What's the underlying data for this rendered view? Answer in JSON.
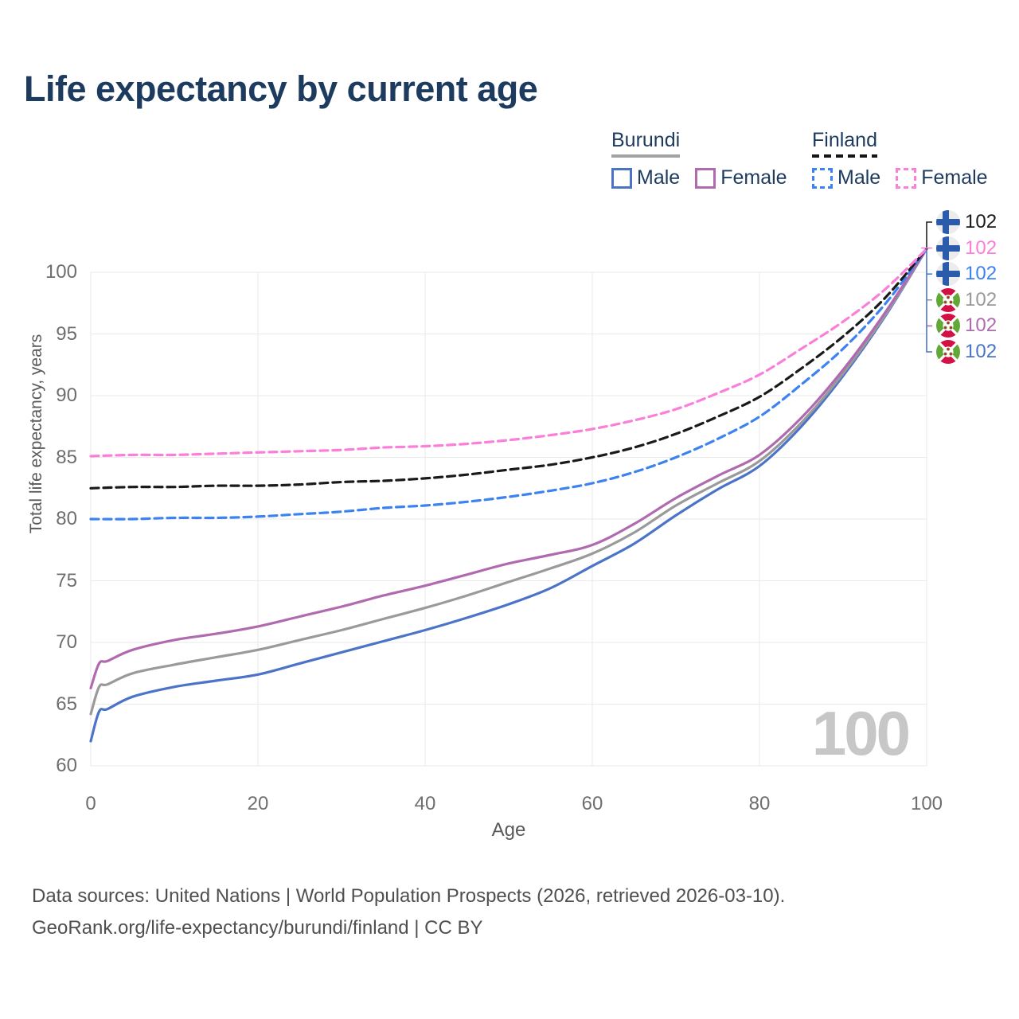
{
  "title": "Life expectancy by current age",
  "legend": {
    "groups": [
      {
        "label": "Burundi",
        "swatch_style": "solid",
        "swatch_color": "#a3a3a3",
        "items": [
          {
            "label": "Male",
            "color": "#4b74c8",
            "dashed": false
          },
          {
            "label": "Female",
            "color": "#b06ab0",
            "dashed": false
          }
        ]
      },
      {
        "label": "Finland",
        "swatch_style": "dashed",
        "swatch_color": "#161616",
        "items": [
          {
            "label": "Male",
            "color": "#3d82f2",
            "dashed": true
          },
          {
            "label": "Female",
            "color": "#fb7fd9",
            "dashed": true
          }
        ]
      }
    ]
  },
  "chart_data": {
    "type": "line",
    "title": "Life expectancy by current age",
    "xlabel": "Age",
    "ylabel": "Total life expectancy, years",
    "xlim": [
      0,
      100
    ],
    "ylim": [
      60,
      102.5
    ],
    "xticks": [
      0,
      20,
      40,
      60,
      80,
      100
    ],
    "yticks": [
      60,
      65,
      70,
      75,
      80,
      85,
      90,
      95,
      100
    ],
    "grid": true,
    "legend_position": "top-right",
    "watermark": "100",
    "series": [
      {
        "id": "finland-total",
        "name": "Finland (both sexes)",
        "country": "Finland",
        "sex": "total",
        "color": "#1a1a1a",
        "dashed": true,
        "flag": "finland",
        "end_label": "102",
        "points": [
          [
            0,
            82.5
          ],
          [
            5,
            82.6
          ],
          [
            10,
            82.6
          ],
          [
            15,
            82.7
          ],
          [
            20,
            82.7
          ],
          [
            25,
            82.8
          ],
          [
            30,
            83.0
          ],
          [
            35,
            83.1
          ],
          [
            40,
            83.3
          ],
          [
            45,
            83.6
          ],
          [
            50,
            84.0
          ],
          [
            55,
            84.4
          ],
          [
            60,
            85.0
          ],
          [
            65,
            85.8
          ],
          [
            70,
            86.9
          ],
          [
            75,
            88.3
          ],
          [
            80,
            89.9
          ],
          [
            85,
            92.2
          ],
          [
            90,
            94.8
          ],
          [
            95,
            97.9
          ],
          [
            100,
            101.9
          ]
        ]
      },
      {
        "id": "finland-female",
        "name": "Finland Female",
        "country": "Finland",
        "sex": "female",
        "color": "#fb7fd9",
        "dashed": true,
        "flag": "finland",
        "end_label": "102",
        "points": [
          [
            0,
            85.1
          ],
          [
            5,
            85.2
          ],
          [
            10,
            85.2
          ],
          [
            15,
            85.3
          ],
          [
            20,
            85.4
          ],
          [
            25,
            85.5
          ],
          [
            30,
            85.6
          ],
          [
            35,
            85.8
          ],
          [
            40,
            85.9
          ],
          [
            45,
            86.1
          ],
          [
            50,
            86.4
          ],
          [
            55,
            86.8
          ],
          [
            60,
            87.3
          ],
          [
            65,
            88.0
          ],
          [
            70,
            88.9
          ],
          [
            75,
            90.2
          ],
          [
            80,
            91.7
          ],
          [
            85,
            93.8
          ],
          [
            90,
            96.0
          ],
          [
            95,
            98.6
          ],
          [
            100,
            101.9
          ]
        ]
      },
      {
        "id": "finland-male",
        "name": "Finland Male",
        "country": "Finland",
        "sex": "male",
        "color": "#3d82f2",
        "dashed": true,
        "flag": "finland",
        "end_label": "102",
        "points": [
          [
            0,
            80.0
          ],
          [
            5,
            80.0
          ],
          [
            10,
            80.1
          ],
          [
            15,
            80.1
          ],
          [
            20,
            80.2
          ],
          [
            25,
            80.4
          ],
          [
            30,
            80.6
          ],
          [
            35,
            80.9
          ],
          [
            40,
            81.1
          ],
          [
            45,
            81.4
          ],
          [
            50,
            81.8
          ],
          [
            55,
            82.3
          ],
          [
            60,
            82.9
          ],
          [
            65,
            83.8
          ],
          [
            70,
            85.0
          ],
          [
            75,
            86.5
          ],
          [
            80,
            88.3
          ],
          [
            85,
            90.9
          ],
          [
            90,
            93.8
          ],
          [
            95,
            97.4
          ],
          [
            100,
            101.9
          ]
        ]
      },
      {
        "id": "burundi-total",
        "name": "Burundi (both sexes)",
        "country": "Burundi",
        "sex": "total",
        "color": "#9a9a9a",
        "dashed": false,
        "flag": "burundi",
        "end_label": "102",
        "points": [
          [
            0,
            64.2
          ],
          [
            1,
            66.4
          ],
          [
            2,
            66.6
          ],
          [
            5,
            67.5
          ],
          [
            10,
            68.2
          ],
          [
            15,
            68.8
          ],
          [
            20,
            69.4
          ],
          [
            25,
            70.2
          ],
          [
            30,
            71.0
          ],
          [
            35,
            71.9
          ],
          [
            40,
            72.8
          ],
          [
            45,
            73.8
          ],
          [
            50,
            74.9
          ],
          [
            55,
            76.0
          ],
          [
            60,
            77.2
          ],
          [
            65,
            78.9
          ],
          [
            70,
            81.1
          ],
          [
            75,
            82.9
          ],
          [
            80,
            84.7
          ],
          [
            85,
            87.8
          ],
          [
            90,
            91.8
          ],
          [
            95,
            96.5
          ],
          [
            100,
            101.9
          ]
        ]
      },
      {
        "id": "burundi-female",
        "name": "Burundi Female",
        "country": "Burundi",
        "sex": "female",
        "color": "#b06ab0",
        "dashed": false,
        "flag": "burundi",
        "end_label": "102",
        "points": [
          [
            0,
            66.3
          ],
          [
            1,
            68.3
          ],
          [
            2,
            68.5
          ],
          [
            5,
            69.4
          ],
          [
            10,
            70.2
          ],
          [
            15,
            70.7
          ],
          [
            20,
            71.3
          ],
          [
            25,
            72.1
          ],
          [
            30,
            72.9
          ],
          [
            35,
            73.8
          ],
          [
            40,
            74.6
          ],
          [
            45,
            75.5
          ],
          [
            50,
            76.4
          ],
          [
            55,
            77.1
          ],
          [
            60,
            77.9
          ],
          [
            65,
            79.6
          ],
          [
            70,
            81.7
          ],
          [
            75,
            83.5
          ],
          [
            80,
            85.2
          ],
          [
            85,
            88.2
          ],
          [
            90,
            92.1
          ],
          [
            95,
            96.7
          ],
          [
            100,
            101.9
          ]
        ]
      },
      {
        "id": "burundi-male",
        "name": "Burundi Male",
        "country": "Burundi",
        "sex": "male",
        "color": "#4b74c8",
        "dashed": false,
        "flag": "burundi",
        "end_label": "102",
        "points": [
          [
            0,
            62.0
          ],
          [
            1,
            64.4
          ],
          [
            2,
            64.6
          ],
          [
            5,
            65.6
          ],
          [
            10,
            66.4
          ],
          [
            15,
            66.9
          ],
          [
            20,
            67.4
          ],
          [
            25,
            68.3
          ],
          [
            30,
            69.2
          ],
          [
            35,
            70.1
          ],
          [
            40,
            71.0
          ],
          [
            45,
            72.0
          ],
          [
            50,
            73.1
          ],
          [
            55,
            74.4
          ],
          [
            60,
            76.2
          ],
          [
            65,
            78.0
          ],
          [
            70,
            80.3
          ],
          [
            75,
            82.4
          ],
          [
            80,
            84.3
          ],
          [
            85,
            87.5
          ],
          [
            90,
            91.6
          ],
          [
            95,
            96.4
          ],
          [
            100,
            101.9
          ]
        ]
      }
    ]
  },
  "colors": {
    "title_text": "#1d3a5f",
    "grid": "#eaeaea",
    "tick_text": "#6e6e6e",
    "axis_title_text": "#595959",
    "watermark": "#c7c7c7",
    "footer_text": "#4f4f4f",
    "burundi_male": "#4b74c8",
    "burundi_female": "#b06ab0",
    "burundi_total": "#9a9a9a",
    "finland_male": "#3d82f2",
    "finland_female": "#fb7fd9",
    "finland_total": "#1a1a1a"
  },
  "footer": {
    "line1": "Data sources: United Nations | World Population Prospects (2026, retrieved 2026-03-10).",
    "line2": "GeoRank.org/life-expectancy/burundi/finland | CC BY"
  }
}
